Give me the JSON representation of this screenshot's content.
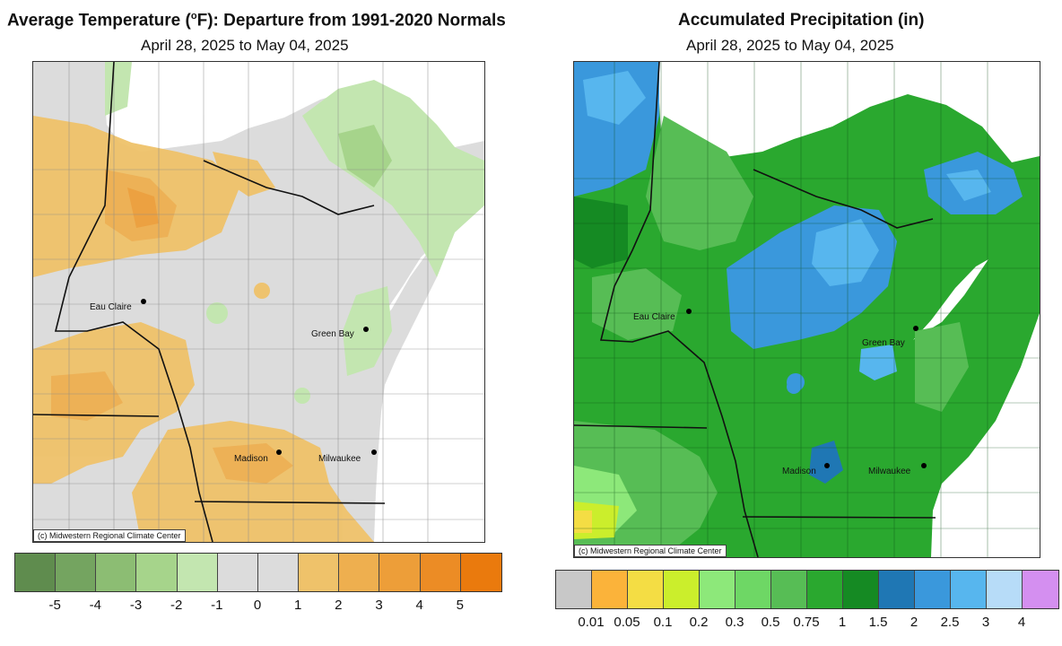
{
  "left_panel": {
    "title_main": "Average Temperature (",
    "title_sup": "o",
    "title_rest": "F): Departure from 1991-2020 Normals",
    "date_range": "April 28, 2025 to May 04, 2025",
    "credit": "(c) Midwestern Regional Climate Center",
    "cities": [
      {
        "name": "Eau Claire"
      },
      {
        "name": "Green Bay"
      },
      {
        "name": "Madison"
      },
      {
        "name": "Milwaukee"
      }
    ],
    "legend": {
      "colors": [
        "#5f8c4e",
        "#74a460",
        "#8cbd73",
        "#a6d48b",
        "#c3e6b0",
        "#dcdcdc",
        "#dcdcdc",
        "#efc26a",
        "#eeaf4f",
        "#ed9e39",
        "#ec8c25",
        "#ea7a0d"
      ],
      "tick_labels": [
        "-5",
        "-4",
        "-3",
        "-2",
        "-1",
        "0",
        "1",
        "2",
        "3",
        "4",
        "5"
      ]
    }
  },
  "right_panel": {
    "title": "Accumulated Precipitation (in)",
    "date_range": "April 28, 2025 to May 04, 2025",
    "credit": "(c) Midwestern Regional Climate Center",
    "cities": [
      {
        "name": "Eau Claire"
      },
      {
        "name": "Green Bay"
      },
      {
        "name": "Madison"
      },
      {
        "name": "Milwaukee"
      }
    ],
    "legend": {
      "colors": [
        "#c8c8c8",
        "#fbb33a",
        "#f4dd44",
        "#cbee2c",
        "#8de87a",
        "#6ed765",
        "#57bd55",
        "#2aa82f",
        "#158a23",
        "#1f77b4",
        "#3a98dc",
        "#57b6ee",
        "#b7dcf8",
        "#d48ff0"
      ],
      "tick_labels": [
        "0.01",
        "0.05",
        "0.1",
        "0.2",
        "0.3",
        "0.5",
        "0.75",
        "1",
        "1.5",
        "2",
        "2.5",
        "3",
        "4"
      ]
    }
  }
}
